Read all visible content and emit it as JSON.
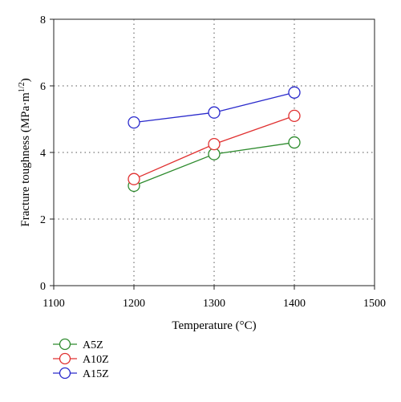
{
  "chart_data": {
    "type": "line",
    "xlabel": "Temperature (°C)",
    "ylabel_main": "Fracture toughness (MPa·m",
    "ylabel_sup": "1/2",
    "ylabel_tail": ")",
    "xlim": [
      1100,
      1500
    ],
    "ylim": [
      0,
      8
    ],
    "x_ticks": [
      1100,
      1200,
      1300,
      1400,
      1500
    ],
    "y_ticks": [
      0,
      2,
      4,
      6,
      8
    ],
    "grid": {
      "vertical_at": [
        1200,
        1300,
        1400
      ],
      "horizontal_at": [
        2,
        4,
        6
      ],
      "style": "dotted"
    },
    "legend_position": "bottom-left, below plot",
    "series": [
      {
        "name": "A5Z",
        "color": "#2e8b2e",
        "x": [
          1200,
          1300,
          1400
        ],
        "y": [
          3.0,
          3.95,
          4.3
        ]
      },
      {
        "name": "A10Z",
        "color": "#e03030",
        "x": [
          1200,
          1300,
          1400
        ],
        "y": [
          3.2,
          4.25,
          5.1
        ]
      },
      {
        "name": "A15Z",
        "color": "#2a2acc",
        "x": [
          1200,
          1300,
          1400
        ],
        "y": [
          4.9,
          5.2,
          5.8
        ]
      }
    ]
  }
}
